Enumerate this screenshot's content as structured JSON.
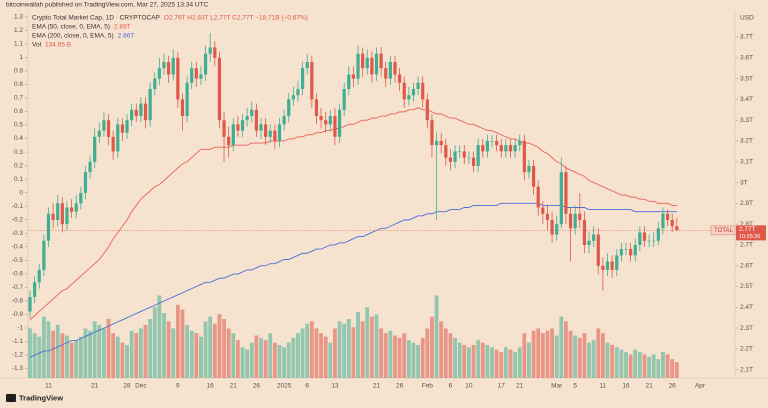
{
  "header": "bitcoinwallah published on TradingView.com, Mar 27, 2025 13:34 UTC",
  "footer": "TradingView",
  "chart_data": {
    "type": "candlestick",
    "currency": "USD",
    "legend": {
      "title": "Crypto Total Market Cap, 1D · CRYPTOCAP",
      "ohlc": "O2.79T H2.83T L2.77T C2.77T −18.71B (−0.67%)"
    },
    "price_tag": {
      "symbol": "TOTAL",
      "label": "2.77T",
      "countdown": "10:25:36"
    },
    "categories": [
      null,
      null,
      null,
      null,
      "11",
      null,
      null,
      null,
      null,
      null,
      null,
      null,
      null,
      null,
      "21",
      null,
      null,
      null,
      null,
      null,
      null,
      "28",
      null,
      null,
      "Dec",
      null,
      null,
      null,
      null,
      null,
      null,
      null,
      "9",
      null,
      null,
      null,
      null,
      null,
      null,
      "16",
      null,
      null,
      null,
      null,
      "21",
      null,
      null,
      null,
      null,
      "26",
      null,
      null,
      null,
      null,
      null,
      "2025",
      null,
      null,
      null,
      null,
      "6",
      null,
      null,
      null,
      null,
      null,
      "13",
      null,
      null,
      null,
      null,
      null,
      null,
      null,
      null,
      "21",
      null,
      null,
      null,
      null,
      "26",
      null,
      null,
      null,
      null,
      null,
      "Feb",
      null,
      null,
      null,
      null,
      "6",
      null,
      null,
      null,
      "10",
      null,
      null,
      null,
      null,
      null,
      null,
      "17",
      null,
      null,
      null,
      "21",
      null,
      null,
      null,
      null,
      null,
      null,
      null,
      "Mar",
      null,
      null,
      null,
      "5",
      null,
      null,
      null,
      null,
      null,
      "11",
      null,
      null,
      null,
      null,
      "16",
      null,
      null,
      null,
      null,
      "21",
      null,
      null,
      null,
      null,
      "26",
      null,
      null,
      null,
      null,
      null,
      "Apr"
    ],
    "open": [
      2.38,
      2.45,
      2.52,
      2.58,
      2.72,
      2.85,
      2.82,
      2.9,
      2.8,
      2.88,
      2.86,
      2.9,
      2.95,
      3.05,
      3.1,
      3.22,
      3.25,
      3.3,
      3.22,
      3.15,
      3.28,
      3.24,
      3.3,
      3.35,
      3.32,
      3.38,
      3.3,
      3.45,
      3.5,
      3.55,
      3.58,
      3.52,
      3.6,
      3.4,
      3.32,
      3.48,
      3.55,
      3.5,
      3.52,
      3.62,
      3.65,
      3.6,
      3.3,
      3.22,
      3.18,
      3.28,
      3.25,
      3.3,
      3.32,
      3.35,
      3.25,
      3.28,
      3.22,
      3.25,
      3.2,
      3.28,
      3.32,
      3.4,
      3.42,
      3.45,
      3.55,
      3.58,
      3.4,
      3.32,
      3.3,
      3.28,
      3.32,
      3.22,
      3.35,
      3.45,
      3.52,
      3.5,
      3.62,
      3.55,
      3.6,
      3.52,
      3.62,
      3.55,
      3.5,
      3.58,
      3.52,
      3.48,
      3.4,
      3.42,
      3.45,
      3.48,
      3.4,
      3.3,
      3.18,
      3.2,
      3.18,
      3.12,
      3.1,
      3.15,
      3.15,
      3.12,
      3.12,
      3.08,
      3.18,
      3.15,
      3.2,
      3.2,
      3.18,
      3.15,
      3.18,
      3.15,
      3.18,
      3.2,
      3.05,
      3.08,
      2.98,
      2.88,
      2.85,
      2.82,
      2.75,
      2.8,
      3.05,
      2.85,
      2.78,
      2.85,
      2.82,
      2.7,
      2.72,
      2.75,
      2.6,
      2.58,
      2.62,
      2.58,
      2.65,
      2.68,
      2.68,
      2.65,
      2.7,
      2.76,
      2.72,
      2.72,
      2.72,
      2.78,
      2.85,
      2.82,
      2.79,
      null,
      null,
      null,
      null,
      null
    ],
    "high": [
      2.48,
      2.55,
      2.61,
      2.75,
      2.88,
      2.9,
      2.94,
      2.93,
      2.91,
      2.92,
      2.94,
      2.98,
      3.08,
      3.13,
      3.26,
      3.29,
      3.34,
      3.33,
      3.25,
      3.31,
      3.31,
      3.33,
      3.38,
      3.38,
      3.41,
      3.41,
      3.48,
      3.53,
      3.6,
      3.62,
      3.61,
      3.64,
      3.63,
      3.43,
      3.51,
      3.58,
      3.58,
      3.56,
      3.66,
      3.72,
      3.68,
      3.63,
      3.34,
      3.27,
      3.31,
      3.32,
      3.33,
      3.36,
      3.39,
      3.38,
      3.31,
      3.31,
      3.28,
      3.28,
      3.31,
      3.35,
      3.43,
      3.46,
      3.49,
      3.58,
      3.62,
      3.61,
      3.43,
      3.36,
      3.34,
      3.35,
      3.36,
      3.38,
      3.48,
      3.56,
      3.56,
      3.66,
      3.65,
      3.64,
      3.63,
      3.65,
      3.65,
      3.58,
      3.61,
      3.61,
      3.55,
      3.51,
      3.46,
      3.48,
      3.51,
      3.51,
      3.43,
      3.33,
      3.24,
      3.24,
      3.21,
      3.16,
      3.18,
      3.18,
      3.18,
      3.15,
      3.15,
      3.21,
      3.21,
      3.23,
      3.23,
      3.23,
      3.21,
      3.21,
      3.21,
      3.21,
      3.23,
      3.23,
      3.11,
      3.11,
      3.01,
      2.91,
      2.89,
      2.86,
      2.84,
      3.12,
      3.08,
      2.88,
      2.89,
      2.95,
      2.86,
      2.76,
      2.79,
      2.78,
      2.64,
      2.66,
      2.65,
      2.68,
      2.71,
      2.71,
      2.71,
      2.73,
      2.79,
      2.79,
      2.75,
      2.76,
      2.81,
      2.88,
      2.87,
      2.85,
      2.83,
      null,
      null,
      null,
      null,
      null
    ],
    "low": [
      2.35,
      2.42,
      2.49,
      2.55,
      2.69,
      2.78,
      2.79,
      2.76,
      2.77,
      2.83,
      2.83,
      2.87,
      2.92,
      3.02,
      3.07,
      3.19,
      3.22,
      3.18,
      3.11,
      3.12,
      3.2,
      3.21,
      3.27,
      3.29,
      3.29,
      3.26,
      3.27,
      3.42,
      3.47,
      3.52,
      3.48,
      3.49,
      3.36,
      3.25,
      3.29,
      3.45,
      3.46,
      3.47,
      3.49,
      3.58,
      3.56,
      3.26,
      3.1,
      3.12,
      3.15,
      3.22,
      3.22,
      3.27,
      3.29,
      3.22,
      3.21,
      3.18,
      3.19,
      3.16,
      3.17,
      3.25,
      3.29,
      3.37,
      3.39,
      3.42,
      3.52,
      3.36,
      3.28,
      3.26,
      3.24,
      3.25,
      3.18,
      3.19,
      3.32,
      3.42,
      3.46,
      3.47,
      3.51,
      3.52,
      3.48,
      3.49,
      3.51,
      3.46,
      3.47,
      3.48,
      3.44,
      3.36,
      3.37,
      3.39,
      3.42,
      3.36,
      3.26,
      3.12,
      2.82,
      3.14,
      3.08,
      3.06,
      3.07,
      3.12,
      3.09,
      3.09,
      3.05,
      3.05,
      3.12,
      3.12,
      3.17,
      3.15,
      3.12,
      3.12,
      3.12,
      3.12,
      3.15,
      3.01,
      3.02,
      2.94,
      2.84,
      2.8,
      2.77,
      2.71,
      2.72,
      2.78,
      2.8,
      2.62,
      2.75,
      2.78,
      2.66,
      2.66,
      2.69,
      2.56,
      2.48,
      2.55,
      2.54,
      2.55,
      2.62,
      2.65,
      2.62,
      2.62,
      2.67,
      2.69,
      2.69,
      2.69,
      2.7,
      2.75,
      2.79,
      2.76,
      2.77,
      null,
      null,
      null,
      null,
      null
    ],
    "close": [
      2.45,
      2.52,
      2.58,
      2.72,
      2.85,
      2.82,
      2.9,
      2.8,
      2.88,
      2.86,
      2.9,
      2.95,
      3.05,
      3.1,
      3.22,
      3.25,
      3.3,
      3.22,
      3.15,
      3.28,
      3.24,
      3.3,
      3.35,
      3.32,
      3.38,
      3.3,
      3.45,
      3.5,
      3.55,
      3.58,
      3.52,
      3.6,
      3.4,
      3.32,
      3.48,
      3.55,
      3.5,
      3.52,
      3.62,
      3.65,
      3.6,
      3.3,
      3.22,
      3.18,
      3.28,
      3.25,
      3.3,
      3.32,
      3.35,
      3.25,
      3.28,
      3.22,
      3.25,
      3.2,
      3.28,
      3.32,
      3.4,
      3.42,
      3.45,
      3.55,
      3.58,
      3.4,
      3.32,
      3.3,
      3.28,
      3.32,
      3.22,
      3.35,
      3.45,
      3.52,
      3.5,
      3.62,
      3.55,
      3.6,
      3.52,
      3.62,
      3.55,
      3.5,
      3.58,
      3.52,
      3.48,
      3.4,
      3.42,
      3.45,
      3.48,
      3.4,
      3.3,
      3.18,
      3.2,
      3.18,
      3.12,
      3.1,
      3.15,
      3.15,
      3.12,
      3.12,
      3.08,
      3.18,
      3.15,
      3.2,
      3.2,
      3.18,
      3.15,
      3.18,
      3.15,
      3.18,
      3.2,
      3.05,
      3.08,
      2.98,
      2.88,
      2.85,
      2.82,
      2.75,
      2.8,
      3.05,
      2.85,
      2.78,
      2.85,
      2.82,
      2.7,
      2.72,
      2.75,
      2.6,
      2.58,
      2.62,
      2.58,
      2.65,
      2.68,
      2.68,
      2.65,
      2.7,
      2.76,
      2.72,
      2.72,
      2.72,
      2.78,
      2.85,
      2.82,
      2.79,
      2.77,
      null,
      null,
      null,
      null,
      null
    ],
    "up_color": "#3fae93",
    "down_color": "#e0584a",
    "volume": {
      "name": "Vol",
      "legend_value": "134.65 B",
      "vlim": [
        0,
        1000
      ],
      "values": [
        420,
        380,
        350,
        520,
        480,
        400,
        450,
        380,
        360,
        300,
        320,
        350,
        420,
        400,
        480,
        450,
        420,
        500,
        380,
        350,
        300,
        280,
        400,
        380,
        420,
        450,
        500,
        600,
        700,
        550,
        480,
        420,
        620,
        580,
        450,
        400,
        380,
        350,
        480,
        520,
        460,
        540,
        500,
        420,
        380,
        320,
        260,
        240,
        300,
        360,
        340,
        320,
        380,
        300,
        280,
        260,
        300,
        340,
        380,
        420,
        460,
        480,
        420,
        380,
        350,
        300,
        420,
        480,
        460,
        500,
        430,
        560,
        480,
        600,
        520,
        540,
        420,
        380,
        400,
        360,
        340,
        380,
        320,
        300,
        280,
        340,
        420,
        520,
        700,
        480,
        420,
        380,
        340,
        300,
        280,
        260,
        280,
        320,
        300,
        280,
        260,
        240,
        220,
        260,
        240,
        220,
        260,
        380,
        300,
        400,
        420,
        380,
        400,
        420,
        360,
        520,
        480,
        400,
        360,
        340,
        380,
        300,
        320,
        420,
        380,
        300,
        280,
        260,
        240,
        220,
        200,
        240,
        220,
        200,
        180,
        200,
        160,
        220,
        200,
        160,
        134.65,
        null,
        null,
        null,
        null,
        null
      ]
    },
    "series": [
      {
        "name": "EMA (50, close, 0, EMA, 5)",
        "color": "#ee5f55",
        "legend_value": "2.89T",
        "values": [
          2.34,
          2.36,
          2.38,
          2.4,
          2.42,
          2.44,
          2.46,
          2.48,
          2.49,
          2.51,
          2.53,
          2.55,
          2.57,
          2.59,
          2.61,
          2.63,
          2.66,
          2.69,
          2.73,
          2.76,
          2.79,
          2.82,
          2.86,
          2.89,
          2.92,
          2.94,
          2.96,
          2.98,
          2.99,
          3.01,
          3.03,
          3.05,
          3.07,
          3.09,
          3.1,
          3.12,
          3.14,
          3.16,
          3.16,
          3.16,
          3.17,
          3.17,
          3.17,
          3.17,
          3.18,
          3.18,
          3.18,
          3.18,
          3.19,
          3.19,
          3.19,
          3.19,
          3.2,
          3.2,
          3.2,
          3.2,
          3.21,
          3.21,
          3.22,
          3.22,
          3.23,
          3.23,
          3.24,
          3.24,
          3.25,
          3.25,
          3.26,
          3.26,
          3.27,
          3.28,
          3.28,
          3.29,
          3.3,
          3.3,
          3.31,
          3.31,
          3.32,
          3.32,
          3.33,
          3.33,
          3.34,
          3.34,
          3.35,
          3.35,
          3.36,
          3.35,
          3.35,
          3.34,
          3.33,
          3.33,
          3.32,
          3.31,
          3.31,
          3.3,
          3.29,
          3.28,
          3.28,
          3.27,
          3.26,
          3.25,
          3.25,
          3.24,
          3.23,
          3.22,
          3.21,
          3.21,
          3.2,
          3.19,
          3.19,
          3.18,
          3.17,
          3.15,
          3.14,
          3.12,
          3.1,
          3.09,
          3.07,
          3.06,
          3.05,
          3.04,
          3.03,
          3.01,
          3.0,
          2.99,
          2.98,
          2.97,
          2.96,
          2.95,
          2.94,
          2.94,
          2.93,
          2.93,
          2.92,
          2.92,
          2.91,
          2.91,
          2.9,
          2.9,
          2.9,
          2.89,
          2.89,
          null,
          null,
          null,
          null,
          null
        ]
      },
      {
        "name": "EMA (200, close, 0, EMA, 5)",
        "color": "#4a6fd8",
        "legend_value": "2.86T",
        "values": [
          2.16,
          2.17,
          2.18,
          2.19,
          2.19,
          2.2,
          2.21,
          2.22,
          2.23,
          2.24,
          2.24,
          2.25,
          2.26,
          2.27,
          2.28,
          2.29,
          2.3,
          2.31,
          2.32,
          2.33,
          2.34,
          2.35,
          2.36,
          2.37,
          2.38,
          2.39,
          2.4,
          2.41,
          2.42,
          2.43,
          2.44,
          2.45,
          2.46,
          2.47,
          2.48,
          2.49,
          2.5,
          2.51,
          2.52,
          2.52,
          2.53,
          2.54,
          2.54,
          2.55,
          2.56,
          2.56,
          2.57,
          2.58,
          2.58,
          2.59,
          2.6,
          2.6,
          2.61,
          2.61,
          2.62,
          2.63,
          2.63,
          2.64,
          2.65,
          2.66,
          2.66,
          2.67,
          2.68,
          2.68,
          2.69,
          2.7,
          2.7,
          2.71,
          2.71,
          2.72,
          2.73,
          2.74,
          2.74,
          2.75,
          2.76,
          2.77,
          2.78,
          2.78,
          2.79,
          2.8,
          2.81,
          2.82,
          2.82,
          2.83,
          2.84,
          2.84,
          2.85,
          2.85,
          2.86,
          2.86,
          2.86,
          2.87,
          2.87,
          2.87,
          2.88,
          2.88,
          2.89,
          2.89,
          2.89,
          2.89,
          2.89,
          2.89,
          2.9,
          2.9,
          2.9,
          2.9,
          2.9,
          2.9,
          2.9,
          2.9,
          2.9,
          2.89,
          2.89,
          2.89,
          2.89,
          2.89,
          2.88,
          2.88,
          2.88,
          2.88,
          2.88,
          2.87,
          2.87,
          2.87,
          2.87,
          2.87,
          2.87,
          2.87,
          2.87,
          2.87,
          2.87,
          2.86,
          2.86,
          2.86,
          2.86,
          2.86,
          2.86,
          2.86,
          2.86,
          2.86,
          2.86,
          null,
          null,
          null,
          null,
          null
        ]
      }
    ],
    "ylim": [
      2.06,
      3.83
    ],
    "yticks": [
      {
        "value": 3.7,
        "label": "3.7T"
      },
      {
        "value": 3.6,
        "label": "3.6T"
      },
      {
        "value": 3.5,
        "label": "3.5T"
      },
      {
        "value": 3.4,
        "label": "3.4T"
      },
      {
        "value": 3.3,
        "label": "3.3T"
      },
      {
        "value": 3.2,
        "label": "3.2T"
      },
      {
        "value": 3.1,
        "label": "3.1T"
      },
      {
        "value": 3,
        "label": "3T"
      },
      {
        "value": 2.9,
        "label": "2.9T"
      },
      {
        "value": 2.8,
        "label": "2.8T"
      },
      {
        "value": 2.7,
        "label": "2.7T"
      },
      {
        "value": 2.6,
        "label": "2.6T"
      },
      {
        "value": 2.5,
        "label": "2.5T"
      },
      {
        "value": 2.4,
        "label": "2.4T"
      },
      {
        "value": 2.3,
        "label": "2.3T"
      },
      {
        "value": 2.2,
        "label": "2.2T"
      },
      {
        "value": 2.1,
        "label": "2.1T"
      }
    ],
    "y2lim": [
      -1.37,
      1.35
    ],
    "y2ticks": [
      1.3,
      1.2,
      1.1,
      1,
      0.9,
      0.8,
      0.7,
      0.6,
      0.5,
      0.4,
      0.3,
      0.2,
      0.1,
      0,
      -0.1,
      -0.2,
      -0.3,
      -0.4,
      -0.5,
      -0.6,
      -0.7,
      -0.8,
      -0.9,
      -1,
      -1.1,
      -1.2,
      -1.3
    ],
    "grid": false
  }
}
